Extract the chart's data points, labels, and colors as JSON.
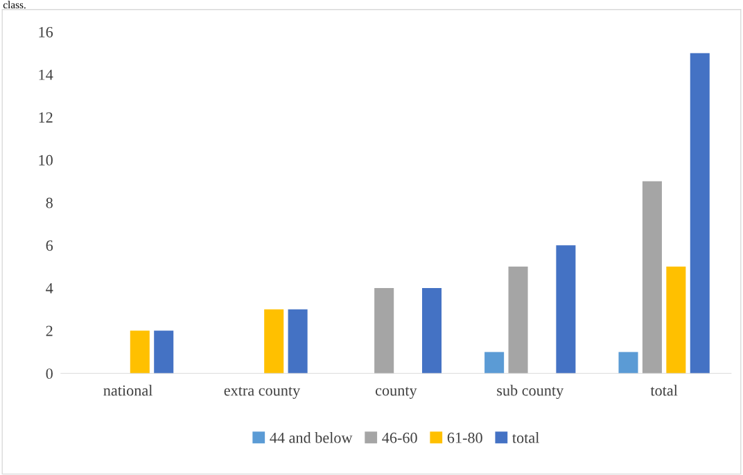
{
  "chart_data": {
    "type": "bar",
    "annotations": [
      "class."
    ],
    "categories": [
      "national",
      "extra county",
      "county",
      "sub county",
      "total"
    ],
    "series": [
      {
        "name": "44 and below",
        "color": "#5b9bd5",
        "values": [
          0,
          0,
          0,
          1,
          1
        ]
      },
      {
        "name": "46-60",
        "color": "#a5a5a5",
        "values": [
          0,
          0,
          4,
          5,
          9
        ]
      },
      {
        "name": "61-80",
        "color": "#ffc000",
        "values": [
          2,
          3,
          0,
          0,
          5
        ]
      },
      {
        "name": "total",
        "color": "#4472c4",
        "values": [
          2,
          3,
          4,
          6,
          15
        ]
      }
    ],
    "ylim": [
      0,
      16
    ],
    "yticks": [
      0,
      2,
      4,
      6,
      8,
      10,
      12,
      14,
      16
    ],
    "grid": false,
    "legend": "bottom"
  }
}
